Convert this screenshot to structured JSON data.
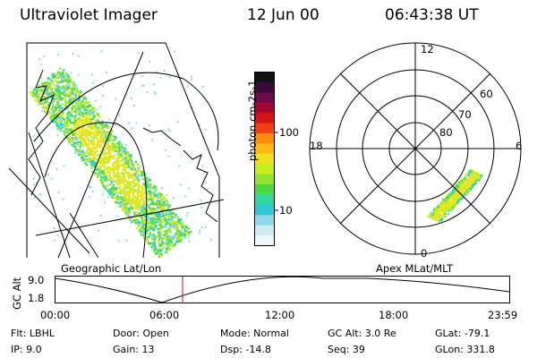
{
  "header": {
    "instrument": "Ultraviolet Imager",
    "date": "12 Jun 00",
    "time": "06:43:38 UT"
  },
  "colorbar": {
    "label": "photon cm-2s-1",
    "ticks": [
      "100",
      "10"
    ],
    "colors": [
      "#111111",
      "#3a0a3a",
      "#6a0a4a",
      "#a00a30",
      "#d8101a",
      "#f04010",
      "#ff8a10",
      "#ffb818",
      "#f0e020",
      "#c8ee20",
      "#90e630",
      "#50d840",
      "#30d8a0",
      "#30c8d8",
      "#8ed8e8",
      "#c8ecf2",
      "#eef8fb"
    ]
  },
  "left_map": {
    "caption": "Geographic Lat/Lon"
  },
  "right_map": {
    "caption": "Apex MLat/MLT",
    "mlt_labels": {
      "top": "12",
      "left": "18",
      "right": "6",
      "bottom": "0"
    },
    "lat_labels": [
      "60",
      "70",
      "80"
    ]
  },
  "altitude_strip": {
    "axis_label": "GC Alt",
    "y_ticks": [
      "9.0",
      "1.8"
    ],
    "x_ticks": [
      "00:00",
      "06:00",
      "12:00",
      "18:00",
      "23:59"
    ],
    "current_time_fraction": 0.28,
    "marker_color": "#c0101a"
  },
  "info": {
    "flt": "Flt: LBHL",
    "ip": "IP:  9.0",
    "door": "Door: Open",
    "gain": "Gain: 13",
    "mode": "Mode: Normal",
    "dsp": "Dsp:  -14.8",
    "gcalt": "GC Alt: 3.0 Re",
    "seq": "Seq: 39",
    "glat": "GLat: -79.1",
    "glon": "GLon: 331.8"
  }
}
